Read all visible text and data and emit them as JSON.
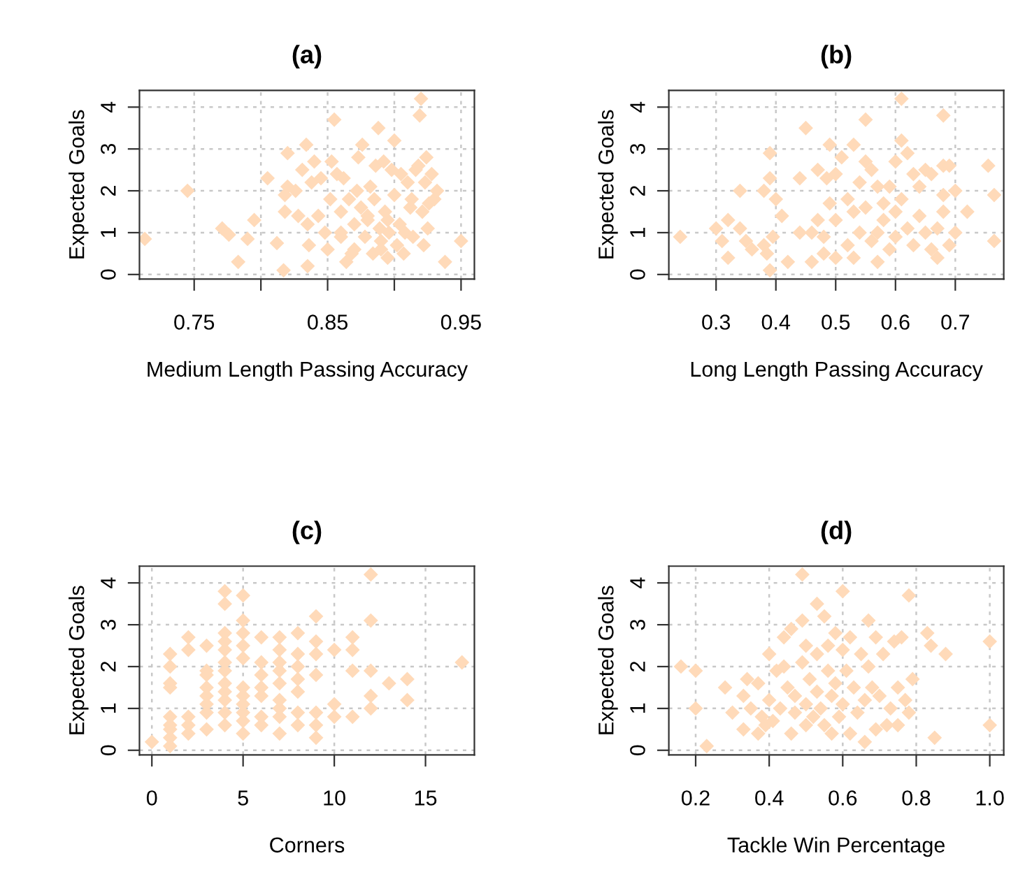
{
  "chart_data": [
    {
      "type": "scatter",
      "title": "(a)",
      "xlabel": "Medium Length Passing Accuracy",
      "ylabel": "Expected Goals",
      "color": "#ffdab9",
      "marker": "diamond",
      "grid": true,
      "xlim": [
        0.709,
        0.96
      ],
      "ylim": [
        -0.11,
        4.4
      ],
      "xticks": [
        {
          "value": 0.75,
          "label": "0.75"
        },
        {
          "value": 0.8,
          "label": null
        },
        {
          "value": 0.85,
          "label": "0.85"
        },
        {
          "value": 0.9,
          "label": null
        },
        {
          "value": 0.95,
          "label": "0.95"
        }
      ],
      "yticks": [
        0,
        1,
        2,
        3,
        4
      ],
      "x": [
        0.713,
        0.745,
        0.771,
        0.776,
        0.783,
        0.79,
        0.795,
        0.805,
        0.812,
        0.817,
        0.818,
        0.818,
        0.82,
        0.82,
        0.826,
        0.828,
        0.831,
        0.834,
        0.835,
        0.835,
        0.838,
        0.84,
        0.836,
        0.843,
        0.845,
        0.848,
        0.85,
        0.852,
        0.853,
        0.855,
        0.857,
        0.86,
        0.86,
        0.862,
        0.864,
        0.866,
        0.868,
        0.87,
        0.872,
        0.873,
        0.875,
        0.876,
        0.878,
        0.88,
        0.882,
        0.884,
        0.885,
        0.886,
        0.888,
        0.889,
        0.89,
        0.892,
        0.893,
        0.895,
        0.896,
        0.898,
        0.9,
        0.9,
        0.902,
        0.904,
        0.905,
        0.907,
        0.908,
        0.91,
        0.912,
        0.913,
        0.914,
        0.916,
        0.918,
        0.919,
        0.92,
        0.921,
        0.922,
        0.923,
        0.924,
        0.925,
        0.926,
        0.928,
        0.93,
        0.932,
        0.938,
        0.95,
        0.87,
        0.88,
        0.895,
        0.86,
        0.89
      ],
      "values": [
        0.85,
        2.0,
        1.1,
        0.95,
        0.3,
        0.85,
        1.3,
        2.3,
        0.75,
        0.1,
        1.5,
        1.9,
        2.9,
        2.1,
        2.0,
        1.4,
        2.5,
        3.1,
        1.2,
        0.2,
        2.2,
        2.7,
        0.7,
        1.4,
        2.3,
        1.0,
        0.6,
        1.8,
        2.7,
        3.7,
        2.4,
        1.5,
        1.0,
        2.3,
        0.3,
        1.8,
        0.5,
        1.2,
        2.0,
        2.8,
        1.6,
        3.1,
        0.9,
        1.4,
        2.1,
        0.5,
        1.8,
        2.6,
        3.5,
        1.1,
        0.8,
        2.7,
        1.5,
        0.4,
        1.0,
        2.5,
        3.2,
        1.9,
        0.7,
        1.2,
        2.4,
        0.5,
        1.0,
        2.2,
        1.6,
        1.8,
        0.9,
        2.5,
        2.6,
        3.8,
        4.2,
        1.5,
        0.7,
        2.2,
        2.8,
        1.1,
        1.7,
        2.4,
        1.8,
        2.0,
        0.3,
        0.8,
        0.6,
        1.3,
        1.3,
        0.9,
        0.6
      ]
    },
    {
      "type": "scatter",
      "title": "(b)",
      "xlabel": "Long Length Passing Accuracy",
      "ylabel": "Expected Goals",
      "color": "#ffdab9",
      "marker": "diamond",
      "grid": true,
      "xlim": [
        0.221,
        0.781
      ],
      "ylim": [
        -0.11,
        4.4
      ],
      "xticks": [
        0.3,
        0.4,
        0.5,
        0.6,
        0.7
      ],
      "yticks": [
        0,
        1,
        2,
        3,
        4
      ],
      "x": [
        0.24,
        0.3,
        0.31,
        0.32,
        0.32,
        0.34,
        0.34,
        0.35,
        0.36,
        0.38,
        0.38,
        0.385,
        0.39,
        0.39,
        0.39,
        0.395,
        0.4,
        0.41,
        0.42,
        0.44,
        0.44,
        0.45,
        0.46,
        0.46,
        0.47,
        0.47,
        0.48,
        0.48,
        0.485,
        0.49,
        0.49,
        0.5,
        0.5,
        0.5,
        0.51,
        0.52,
        0.52,
        0.53,
        0.53,
        0.53,
        0.54,
        0.54,
        0.55,
        0.55,
        0.55,
        0.56,
        0.56,
        0.57,
        0.57,
        0.57,
        0.58,
        0.58,
        0.59,
        0.59,
        0.6,
        0.6,
        0.6,
        0.61,
        0.61,
        0.61,
        0.62,
        0.62,
        0.63,
        0.63,
        0.64,
        0.64,
        0.65,
        0.65,
        0.66,
        0.66,
        0.67,
        0.67,
        0.68,
        0.68,
        0.68,
        0.68,
        0.69,
        0.69,
        0.7,
        0.7,
        0.72,
        0.755,
        0.765,
        0.765
      ],
      "values": [
        0.9,
        1.1,
        0.8,
        1.3,
        0.4,
        2.0,
        1.1,
        0.8,
        0.6,
        2.0,
        0.7,
        0.5,
        2.9,
        0.1,
        2.3,
        0.9,
        1.8,
        1.4,
        0.3,
        2.3,
        1.0,
        3.5,
        1.0,
        0.3,
        2.5,
        1.3,
        0.5,
        0.9,
        2.3,
        3.1,
        1.7,
        2.4,
        1.3,
        0.4,
        2.8,
        1.8,
        0.7,
        3.1,
        1.5,
        0.4,
        2.2,
        1.0,
        3.7,
        2.7,
        1.6,
        2.5,
        0.8,
        2.1,
        1.0,
        0.3,
        1.7,
        1.3,
        2.1,
        0.6,
        2.7,
        1.5,
        0.9,
        3.2,
        4.2,
        1.8,
        2.9,
        1.1,
        2.4,
        0.7,
        1.4,
        2.1,
        1.0,
        2.5,
        0.6,
        2.4,
        1.1,
        0.4,
        3.8,
        2.6,
        1.9,
        1.5,
        2.6,
        0.7,
        2.0,
        1.0,
        1.5,
        2.6,
        1.9,
        0.8
      ]
    },
    {
      "type": "scatter",
      "title": "(c)",
      "xlabel": "Corners",
      "ylabel": "Expected Goals",
      "color": "#ffdab9",
      "marker": "diamond",
      "grid": true,
      "xlim": [
        -0.68,
        17.68
      ],
      "ylim": [
        -0.11,
        4.4
      ],
      "xticks": [
        0,
        5,
        10,
        15
      ],
      "yticks": [
        0,
        1,
        2,
        3,
        4
      ],
      "x": [
        0,
        1,
        1,
        1,
        1,
        1,
        1,
        1,
        1,
        1,
        2,
        2,
        2,
        2,
        2,
        3,
        3,
        3,
        3,
        3,
        3,
        3,
        3,
        4,
        4,
        4,
        4,
        4,
        4,
        4,
        4,
        4,
        4,
        4,
        4,
        5,
        5,
        5,
        5,
        5,
        5,
        5,
        5,
        5,
        5,
        5,
        6,
        6,
        6,
        6,
        6,
        6,
        6,
        7,
        7,
        7,
        7,
        7,
        7,
        7,
        7,
        7,
        8,
        8,
        8,
        8,
        8,
        8,
        8,
        9,
        9,
        9,
        9,
        9,
        9,
        9,
        10,
        10,
        10,
        11,
        11,
        11,
        11,
        12,
        12,
        12,
        12,
        12,
        13,
        14,
        14,
        17
      ],
      "values": [
        0.2,
        0.1,
        0.3,
        0.5,
        0.6,
        0.8,
        1.5,
        1.6,
        2.0,
        2.3,
        0.4,
        0.6,
        0.8,
        2.4,
        2.7,
        0.5,
        0.9,
        1.1,
        1.3,
        1.5,
        1.8,
        1.9,
        2.5,
        0.6,
        0.9,
        1.2,
        1.4,
        1.6,
        1.9,
        2.1,
        2.4,
        2.6,
        2.8,
        3.5,
        3.8,
        0.4,
        0.7,
        0.9,
        1.1,
        1.3,
        1.5,
        2.2,
        2.5,
        2.8,
        3.1,
        3.7,
        0.6,
        0.8,
        1.3,
        1.5,
        1.8,
        2.1,
        2.7,
        0.4,
        0.8,
        1.0,
        1.2,
        1.6,
        1.9,
        2.1,
        2.4,
        2.7,
        0.6,
        0.9,
        1.4,
        1.7,
        2.0,
        2.3,
        2.8,
        0.3,
        0.6,
        0.9,
        1.8,
        2.3,
        2.6,
        3.2,
        0.8,
        1.1,
        2.4,
        0.8,
        1.9,
        2.4,
        2.7,
        1.0,
        1.3,
        1.9,
        3.1,
        4.2,
        1.6,
        1.2,
        1.7,
        2.1
      ]
    },
    {
      "type": "scatter",
      "title": "(d)",
      "xlabel": "Tackle Win Percentage",
      "ylabel": "Expected Goals",
      "color": "#ffdab9",
      "marker": "diamond",
      "grid": true,
      "xlim": [
        0.127,
        1.038
      ],
      "ylim": [
        -0.11,
        4.4
      ],
      "xticks": [
        0.2,
        0.4,
        0.6,
        0.8,
        {
          "value": 1.0,
          "label": "1.0"
        }
      ],
      "yticks": [
        0,
        1,
        2,
        3,
        4
      ],
      "x": [
        0.16,
        0.2,
        0.2,
        0.23,
        0.28,
        0.3,
        0.33,
        0.33,
        0.34,
        0.35,
        0.37,
        0.37,
        0.38,
        0.39,
        0.4,
        0.4,
        0.41,
        0.42,
        0.43,
        0.44,
        0.44,
        0.45,
        0.46,
        0.46,
        0.47,
        0.47,
        0.49,
        0.49,
        0.49,
        0.5,
        0.5,
        0.5,
        0.51,
        0.52,
        0.53,
        0.53,
        0.53,
        0.54,
        0.55,
        0.55,
        0.56,
        0.56,
        0.57,
        0.57,
        0.58,
        0.58,
        0.59,
        0.6,
        0.6,
        0.6,
        0.61,
        0.62,
        0.62,
        0.63,
        0.64,
        0.65,
        0.66,
        0.66,
        0.67,
        0.67,
        0.68,
        0.69,
        0.69,
        0.7,
        0.71,
        0.72,
        0.73,
        0.74,
        0.75,
        0.75,
        0.76,
        0.77,
        0.78,
        0.78,
        0.79,
        0.83,
        0.84,
        0.85,
        0.88,
        1.0,
        1.0
      ],
      "values": [
        2.0,
        1.9,
        1.0,
        0.1,
        1.5,
        0.9,
        0.5,
        1.3,
        1.7,
        1.0,
        0.4,
        1.6,
        0.8,
        0.6,
        2.3,
        1.2,
        0.7,
        1.9,
        1.0,
        2.7,
        2.0,
        1.5,
        0.4,
        2.9,
        0.9,
        1.3,
        4.2,
        3.1,
        2.1,
        1.1,
        0.6,
        2.5,
        1.7,
        0.8,
        1.4,
        3.5,
        2.3,
        1.0,
        0.6,
        3.2,
        1.9,
        2.5,
        0.4,
        1.3,
        2.8,
        1.6,
        0.8,
        3.8,
        2.4,
        1.1,
        1.9,
        2.7,
        0.4,
        1.5,
        0.9,
        2.3,
        1.2,
        0.2,
        3.1,
        2.0,
        1.5,
        0.5,
        2.7,
        1.3,
        2.3,
        0.6,
        1.0,
        2.6,
        1.5,
        0.6,
        2.7,
        1.2,
        3.7,
        0.9,
        1.7,
        2.8,
        2.5,
        0.3,
        2.3,
        2.6,
        0.6
      ]
    }
  ]
}
